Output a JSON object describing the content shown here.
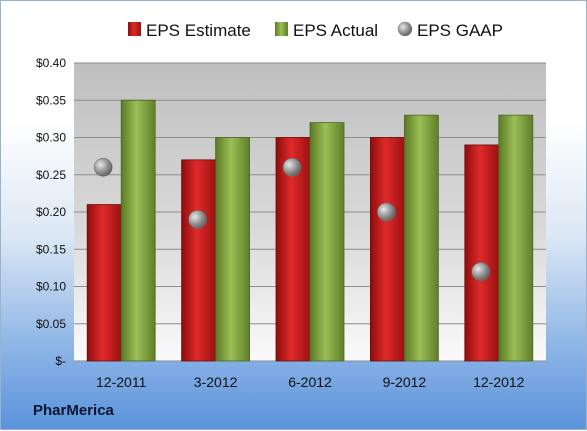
{
  "chart_data": {
    "type": "bar",
    "categories": [
      "12-2011",
      "3-2012",
      "6-2012",
      "9-2012",
      "12-2012"
    ],
    "series": [
      {
        "name": "EPS Estimate",
        "kind": "bar",
        "color": "#c81e1e",
        "values": [
          0.21,
          0.27,
          0.3,
          0.3,
          0.29
        ]
      },
      {
        "name": "EPS Actual",
        "kind": "bar",
        "color": "#7fa23e",
        "values": [
          0.35,
          0.3,
          0.32,
          0.33,
          0.33
        ]
      },
      {
        "name": "EPS GAAP",
        "kind": "marker",
        "color": "#8a8a8a",
        "values": [
          0.26,
          0.19,
          0.26,
          0.2,
          0.12
        ]
      }
    ],
    "yticks": [
      "$0.40",
      "$0.35",
      "$0.30",
      "$0.25",
      "$0.20",
      "$0.15",
      "$0.10",
      "$0.05",
      "$-"
    ],
    "ylim": [
      0,
      0.4
    ],
    "grid": true,
    "legend_position": "top"
  },
  "footer": {
    "company": "PharMerica"
  }
}
